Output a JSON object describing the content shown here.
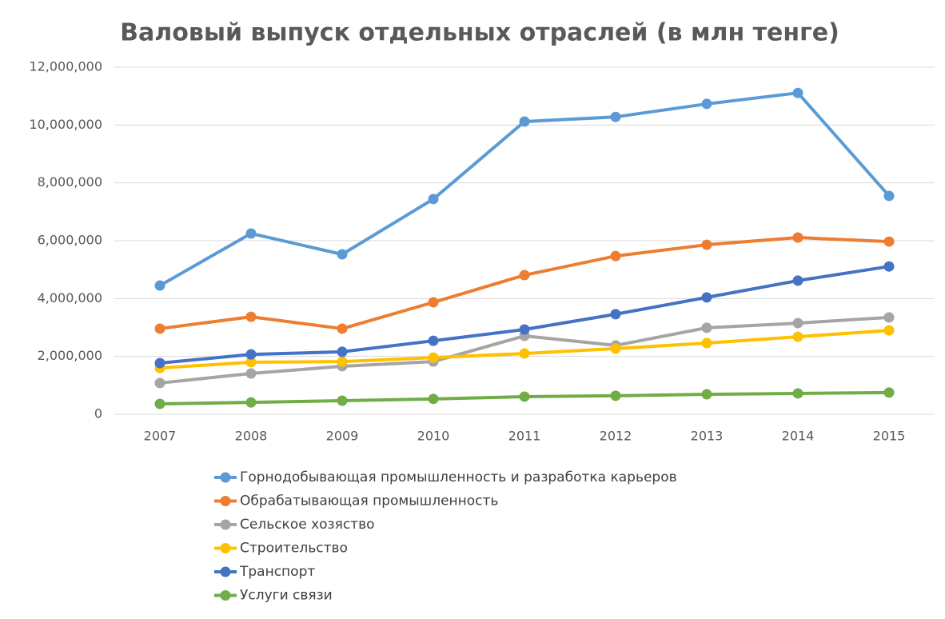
{
  "chart_data": {
    "type": "line",
    "title": "Валовый выпуск отдельных отраслей (в млн тенге)",
    "categories": [
      "2007",
      "2008",
      "2009",
      "2010",
      "2011",
      "2012",
      "2013",
      "2014",
      "2015"
    ],
    "series": [
      {
        "name": "Горнодобывающая промышленность и разработка карьеров",
        "color": "#5b9bd5",
        "values": [
          4450000,
          6250000,
          5530000,
          7440000,
          10120000,
          10280000,
          10730000,
          11110000,
          7550000
        ]
      },
      {
        "name": "Обрабатывающая промышленность",
        "color": "#ed7d31",
        "values": [
          2960000,
          3370000,
          2960000,
          3870000,
          4810000,
          5470000,
          5860000,
          6110000,
          5970000
        ]
      },
      {
        "name": "Сельское хозяство",
        "color": "#a5a5a5",
        "values": [
          1080000,
          1410000,
          1660000,
          1820000,
          2710000,
          2380000,
          2990000,
          3150000,
          3350000
        ]
      },
      {
        "name": "Строительство",
        "color": "#ffc000",
        "values": [
          1600000,
          1800000,
          1820000,
          1960000,
          2100000,
          2270000,
          2460000,
          2680000,
          2900000
        ]
      },
      {
        "name": "Транспорт",
        "color": "#4472c4",
        "values": [
          1770000,
          2070000,
          2160000,
          2540000,
          2930000,
          3460000,
          4040000,
          4620000,
          5110000
        ]
      },
      {
        "name": "Услуги связи",
        "color": "#70ad47",
        "values": [
          360000,
          410000,
          470000,
          530000,
          610000,
          640000,
          690000,
          720000,
          750000
        ]
      }
    ],
    "ylim": [
      0,
      12000000
    ],
    "yticks": [
      0,
      {
        "value": 2000000,
        "label": "2,000,000"
      },
      {
        "value": 4000000,
        "label": "4,000,000"
      },
      {
        "value": 6000000,
        "label": "6,000,000"
      },
      {
        "value": 8000000,
        "label": "8,000,000"
      },
      {
        "value": 10000000,
        "label": "10,000,000"
      },
      {
        "value": 12000000,
        "label": "12,000,000"
      }
    ],
    "grid": true,
    "legend": "bottom"
  }
}
